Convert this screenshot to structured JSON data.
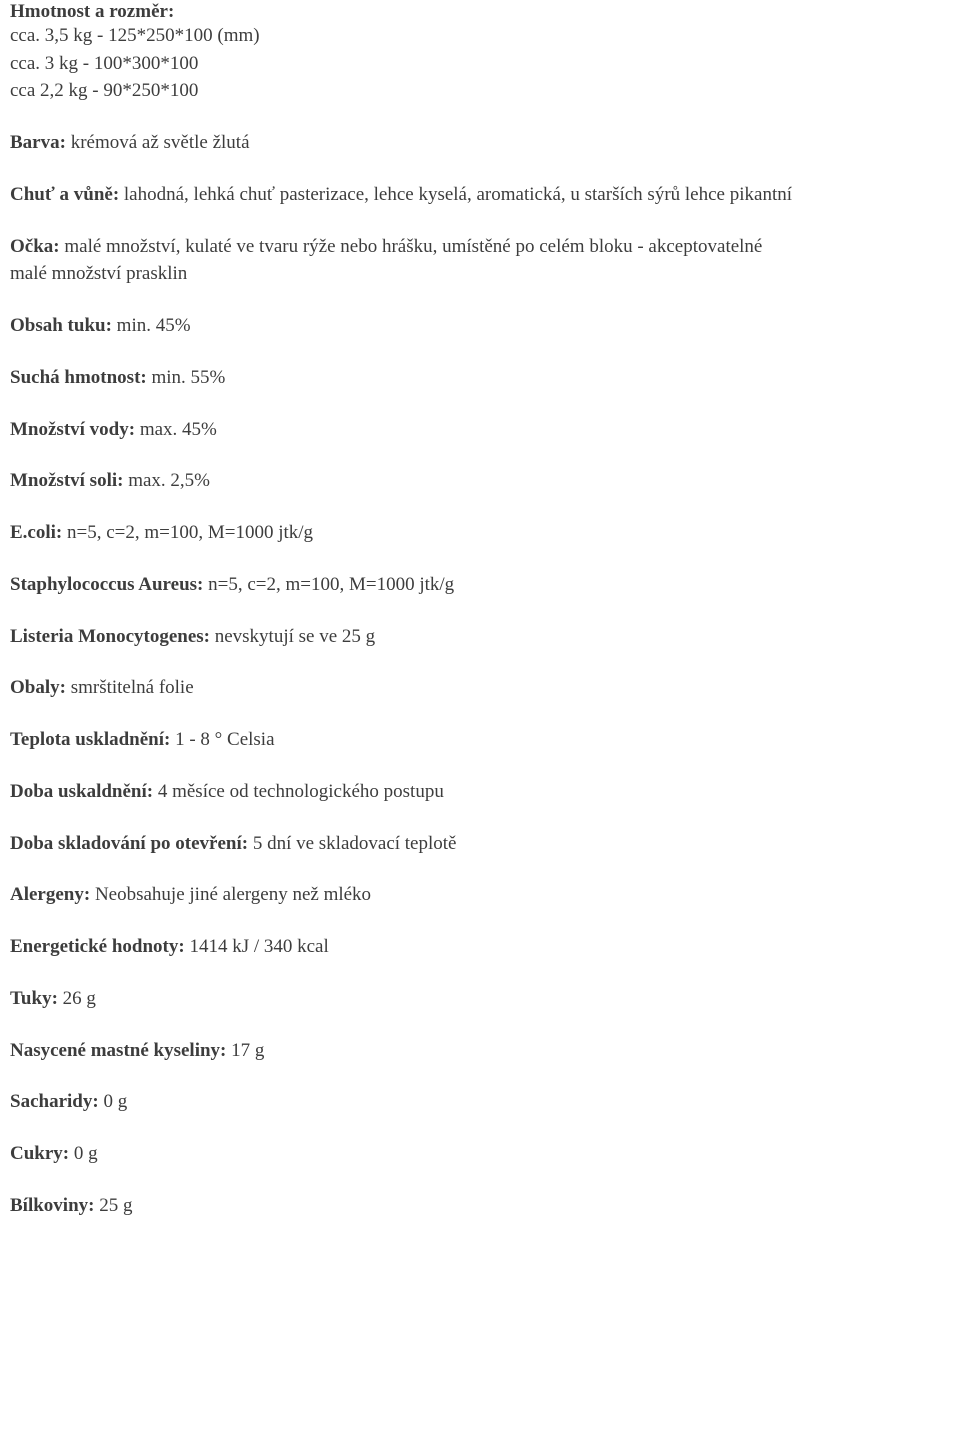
{
  "weight_dim": {
    "title": "Hmotnost a rozměr:",
    "lines": [
      "cca. 3,5 kg - 125*250*100 (mm)",
      "cca. 3 kg - 100*300*100",
      "cca 2,2 kg - 90*250*100"
    ]
  },
  "color": {
    "label": "Barva:",
    "value": " krémová až světle žlutá"
  },
  "taste": {
    "label": "Chuť a vůně:",
    "value": " lahodná, lehká chuť pasterizace, lehce kyselá, aromatická, u starších sýrů lehce pikantní"
  },
  "eyes": {
    "label": "Očka:",
    "value1": " malé množství, kulaté ve tvaru rýže nebo hrášku, umístěné po celém bloku - akceptovatelné",
    "value2": "malé množství prasklin"
  },
  "fat": {
    "label": "Obsah tuku:",
    "value": " min. 45%"
  },
  "dry": {
    "label": "Suchá hmotnost:",
    "value": " min. 55%"
  },
  "water": {
    "label": "Množství vody:",
    "value": " max. 45%"
  },
  "salt": {
    "label": "Množství soli:",
    "value": " max. 2,5%"
  },
  "ecoli": {
    "label": "E.coli:",
    "value": " n=5, c=2, m=100, M=1000 jtk/g"
  },
  "staph": {
    "label": "Staphylococcus Aureus:",
    "value": " n=5, c=2, m=100, M=1000 jtk/g"
  },
  "listeria": {
    "label": "Listeria Monocytogenes:",
    "value": " nevskytují se ve 25 g"
  },
  "packaging": {
    "label": "Obaly:",
    "value": " smrštitelná folie"
  },
  "storage_temp": {
    "label": "Teplota uskladnění:",
    "value": " 1 - 8 ° Celsia"
  },
  "storage_time": {
    "label": "Doba uskaldnění:",
    "value": " 4 měsíce od technologického postupu"
  },
  "after_open": {
    "label": "Doba skladování po otevření:",
    "value": " 5 dní ve skladovací teplotě"
  },
  "allergens": {
    "label": "Alergeny:",
    "value": " Neobsahuje jiné alergeny než mléko"
  },
  "energy": {
    "label": "Energetické hodnoty:",
    "value": " 1414 kJ / 340 kcal"
  },
  "fats": {
    "label": "Tuky:",
    "value": " 26 g"
  },
  "sat_fat": {
    "label": "Nasycené mastné kyseliny:",
    "value": " 17 g"
  },
  "carbs": {
    "label": "Sacharidy:",
    "value": " 0 g"
  },
  "sugars": {
    "label": "Cukry:",
    "value": " 0 g"
  },
  "protein": {
    "label": "Bílkoviny:",
    "value": " 25 g"
  }
}
